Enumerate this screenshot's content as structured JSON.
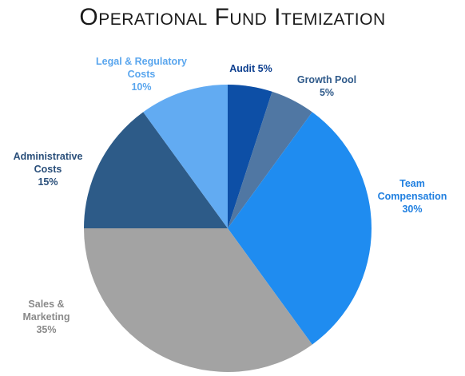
{
  "chart_data": {
    "type": "pie",
    "title": "Operational Fund Itemization",
    "categories": [
      "Audit",
      "Growth Pool",
      "Team Compensation",
      "Sales & Marketing",
      "Administrative Costs",
      "Legal & Regulatory Costs"
    ],
    "values": [
      5,
      5,
      30,
      35,
      15,
      10
    ],
    "unit": "%",
    "colors": [
      "#0d4fa6",
      "#5077a3",
      "#1f8cf0",
      "#a3a3a3",
      "#2d5b88",
      "#62abf2"
    ],
    "label_colors": [
      "#0d3f8f",
      "#2f5a8a",
      "#1f7fe0",
      "#8a8a8a",
      "#2a4f7a",
      "#5aa6ee"
    ],
    "labels": [
      {
        "lines": [
          "Audit 5%"
        ]
      },
      {
        "lines": [
          "Growth Pool",
          "5%"
        ]
      },
      {
        "lines": [
          "Team",
          "Compensation",
          "30%"
        ]
      },
      {
        "lines": [
          "Sales &",
          "Marketing",
          "35%"
        ]
      },
      {
        "lines": [
          "Administrative",
          "Costs",
          "15%"
        ]
      },
      {
        "lines": [
          "Legal & Regulatory",
          "Costs",
          "10%"
        ]
      }
    ],
    "start_angle_deg": 0,
    "direction": "clockwise",
    "legend": "none"
  }
}
